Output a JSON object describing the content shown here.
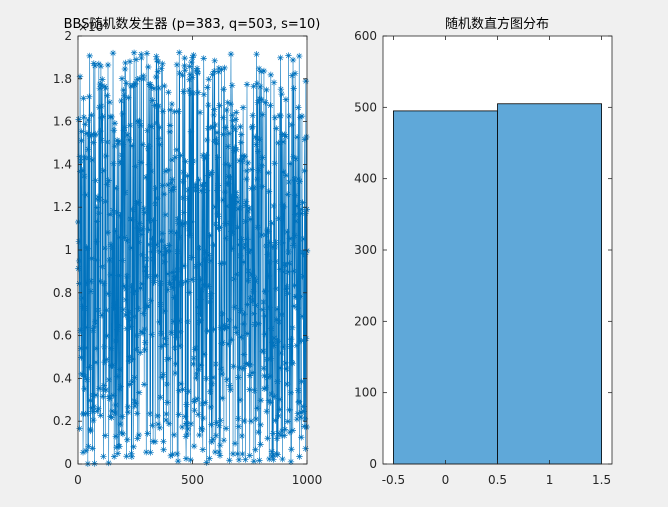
{
  "chart_data": [
    {
      "type": "line",
      "title": "BBS随机数发生器 (p=383, q=503, s=10)",
      "exponent_label": "×10⁵",
      "xlabel": "",
      "ylabel": "",
      "xlim": [
        0,
        1000
      ],
      "ylim": [
        0,
        2
      ],
      "xticks": [
        0,
        500,
        1000
      ],
      "yticks": [
        0,
        0.2,
        0.4,
        0.6,
        0.8,
        1,
        1.2,
        1.4,
        1.6,
        1.8,
        2
      ],
      "y_multiplier": 100000,
      "n_points": 1000,
      "y_value_range": [
        0,
        192388
      ],
      "marker": "*",
      "series": [
        {
          "color": "#0072BD"
        }
      ]
    },
    {
      "type": "bar",
      "title": "随机数直方图分布",
      "xlabel": "",
      "ylabel": "",
      "categories": [
        0,
        1
      ],
      "values": [
        495,
        505
      ],
      "bin_edges": [
        -0.5,
        0.5,
        1.5
      ],
      "xlim": [
        -0.6,
        1.6
      ],
      "ylim": [
        0,
        600
      ],
      "xticks": [
        -0.5,
        0,
        0.5,
        1,
        1.5
      ],
      "yticks": [
        0,
        100,
        200,
        300,
        400,
        500,
        600
      ],
      "bar_color": "#5FA8D9",
      "edge_color": "#000000"
    }
  ]
}
